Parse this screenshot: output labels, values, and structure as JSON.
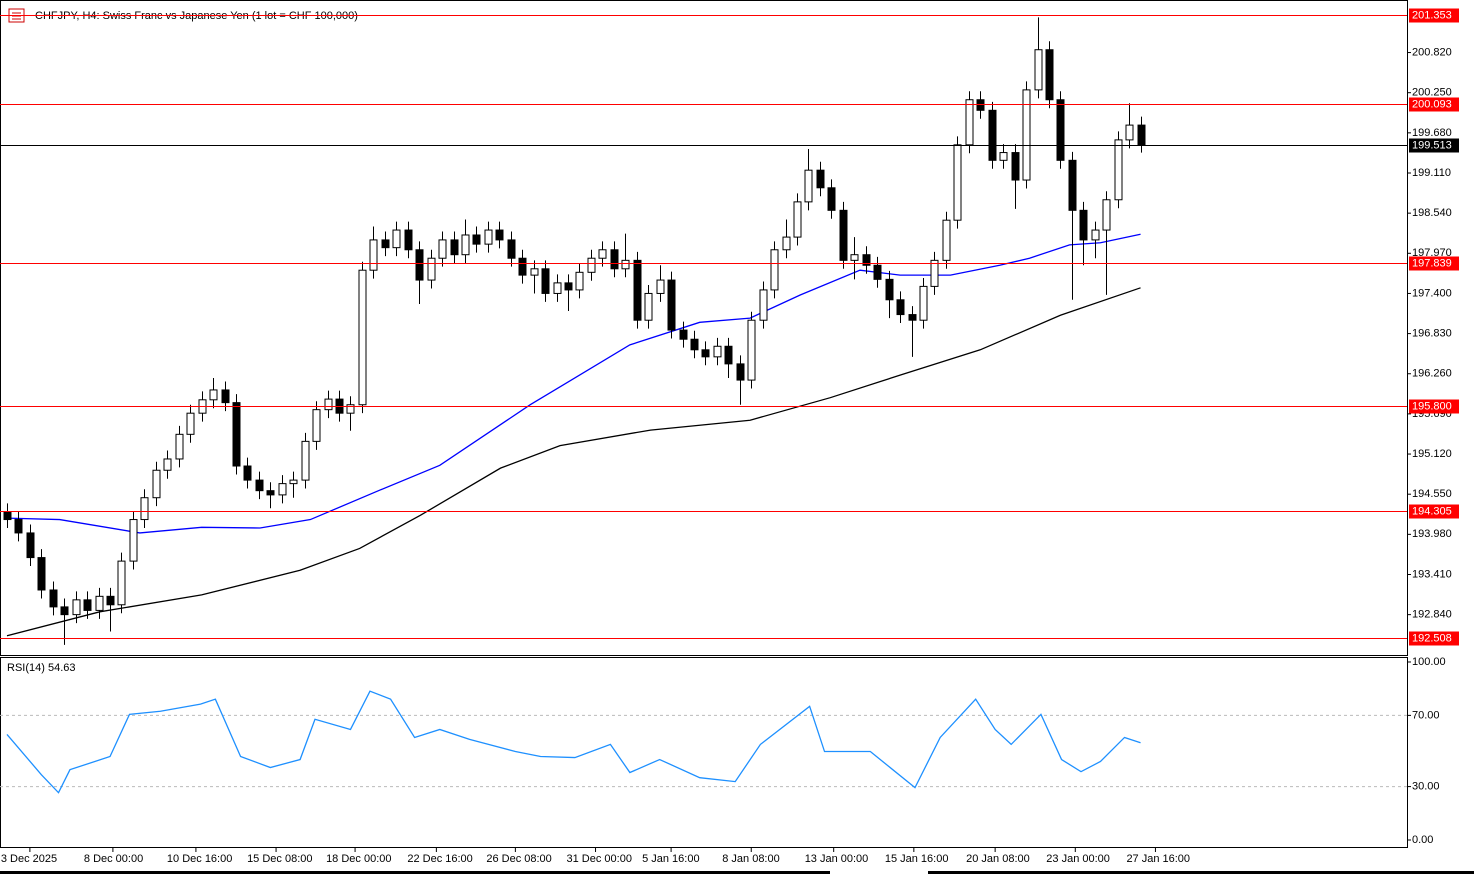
{
  "chart_data": [
    {
      "type": "candlestick",
      "title": "CHFJPY, H4:  Swiss Franc vs Japanese Yen (1 lot = CHF 100,000)",
      "xlim": [
        -0.61,
        122.27
      ],
      "ylim": [
        192.267,
        201.566
      ],
      "yticks": [
        {
          "value": 200.82,
          "label": "200.820"
        },
        {
          "value": 200.25,
          "label": "200.250"
        },
        {
          "value": 199.68,
          "label": "199.680"
        },
        {
          "value": 199.11,
          "label": "199.110"
        },
        {
          "value": 198.54,
          "label": "198.540"
        },
        {
          "value": 197.97,
          "label": "197.970"
        },
        {
          "value": 197.4,
          "label": "197.400"
        },
        {
          "value": 196.83,
          "label": "196.830"
        },
        {
          "value": 196.26,
          "label": "196.260"
        },
        {
          "value": 195.69,
          "label": "195.690"
        },
        {
          "value": 195.12,
          "label": "195.120"
        },
        {
          "value": 194.55,
          "label": "194.550"
        },
        {
          "value": 193.98,
          "label": "193.980"
        },
        {
          "value": 193.41,
          "label": "193.410"
        },
        {
          "value": 192.84,
          "label": "192.840"
        }
      ],
      "levels": [
        {
          "value": 201.353,
          "color": "#ff0000"
        },
        {
          "value": 200.093,
          "color": "#ff0000"
        },
        {
          "value": 199.513,
          "color": "#000000"
        },
        {
          "value": 197.839,
          "color": "#ff0000"
        },
        {
          "value": 195.8,
          "label": "195.800",
          "color": "#ff0000"
        },
        {
          "value": 194.305,
          "color": "#ff0000"
        },
        {
          "value": 192.508,
          "color": "#ff0000"
        }
      ],
      "ohlc": [
        [
          194.3,
          194.42,
          194.07,
          194.19
        ],
        [
          194.19,
          194.31,
          193.88,
          194.0
        ],
        [
          194.0,
          194.12,
          193.53,
          193.65
        ],
        [
          193.65,
          193.77,
          193.07,
          193.19
        ],
        [
          193.19,
          193.31,
          192.83,
          192.95
        ],
        [
          192.95,
          193.07,
          192.41,
          192.84
        ],
        [
          192.84,
          193.17,
          192.72,
          193.05
        ],
        [
          193.05,
          193.17,
          192.78,
          192.9
        ],
        [
          192.9,
          193.22,
          192.78,
          193.1
        ],
        [
          193.1,
          193.22,
          192.6,
          192.98
        ],
        [
          192.98,
          193.72,
          192.86,
          193.6
        ],
        [
          193.6,
          194.31,
          193.48,
          194.19
        ],
        [
          194.19,
          194.62,
          194.07,
          194.5
        ],
        [
          194.5,
          195.01,
          194.38,
          194.89
        ],
        [
          194.89,
          195.17,
          194.77,
          195.05
        ],
        [
          195.05,
          195.52,
          194.93,
          195.4
        ],
        [
          195.4,
          195.82,
          195.28,
          195.7
        ],
        [
          195.7,
          196.01,
          195.58,
          195.89
        ],
        [
          195.89,
          196.2,
          195.77,
          196.03
        ],
        [
          196.03,
          196.15,
          195.73,
          195.85
        ],
        [
          195.85,
          195.97,
          194.83,
          194.95
        ],
        [
          194.95,
          195.07,
          194.63,
          194.75
        ],
        [
          194.75,
          194.87,
          194.48,
          194.6
        ],
        [
          194.6,
          194.72,
          194.35,
          194.54
        ],
        [
          194.54,
          194.82,
          194.42,
          194.7
        ],
        [
          194.7,
          194.87,
          194.5,
          194.75
        ],
        [
          194.75,
          195.42,
          194.63,
          195.3
        ],
        [
          195.3,
          195.87,
          195.18,
          195.75
        ],
        [
          195.75,
          196.02,
          195.63,
          195.9
        ],
        [
          195.9,
          196.02,
          195.58,
          195.7
        ],
        [
          195.7,
          195.94,
          195.45,
          195.82
        ],
        [
          195.82,
          197.85,
          195.7,
          197.73
        ],
        [
          197.73,
          198.35,
          197.61,
          198.16
        ],
        [
          198.16,
          198.28,
          197.93,
          198.05
        ],
        [
          198.05,
          198.42,
          197.93,
          198.3
        ],
        [
          198.3,
          198.42,
          197.9,
          198.02
        ],
        [
          198.02,
          198.14,
          197.25,
          197.59
        ],
        [
          197.59,
          198.02,
          197.47,
          197.9
        ],
        [
          197.9,
          198.28,
          197.78,
          198.16
        ],
        [
          198.16,
          198.28,
          197.83,
          197.95
        ],
        [
          197.95,
          198.45,
          197.83,
          198.23
        ],
        [
          198.23,
          198.35,
          197.98,
          198.1
        ],
        [
          198.1,
          198.42,
          197.98,
          198.3
        ],
        [
          198.3,
          198.42,
          198.04,
          198.16
        ],
        [
          198.16,
          198.28,
          197.78,
          197.9
        ],
        [
          197.9,
          198.02,
          197.54,
          197.66
        ],
        [
          197.66,
          197.87,
          197.4,
          197.75
        ],
        [
          197.75,
          197.87,
          197.28,
          197.4
        ],
        [
          197.4,
          197.67,
          197.28,
          197.55
        ],
        [
          197.55,
          197.67,
          197.15,
          197.45
        ],
        [
          197.45,
          197.82,
          197.33,
          197.7
        ],
        [
          197.7,
          198.02,
          197.58,
          197.9
        ],
        [
          197.9,
          198.14,
          197.78,
          198.02
        ],
        [
          198.02,
          198.14,
          197.63,
          197.75
        ],
        [
          197.75,
          198.25,
          197.63,
          197.87
        ],
        [
          197.87,
          197.99,
          196.9,
          197.02
        ],
        [
          197.02,
          197.52,
          196.9,
          197.4
        ],
        [
          197.4,
          197.8,
          197.28,
          197.59
        ],
        [
          197.59,
          197.71,
          196.76,
          196.88
        ],
        [
          196.88,
          197.0,
          196.63,
          196.75
        ],
        [
          196.75,
          196.87,
          196.48,
          196.6
        ],
        [
          196.6,
          196.72,
          196.38,
          196.5
        ],
        [
          196.5,
          196.77,
          196.38,
          196.65
        ],
        [
          196.65,
          196.77,
          196.2,
          196.4
        ],
        [
          196.4,
          196.52,
          195.82,
          196.17
        ],
        [
          196.17,
          197.14,
          196.05,
          197.02
        ],
        [
          197.02,
          197.57,
          196.9,
          197.45
        ],
        [
          197.45,
          198.14,
          197.33,
          198.02
        ],
        [
          198.02,
          198.45,
          197.9,
          198.2
        ],
        [
          198.2,
          198.82,
          198.08,
          198.7
        ],
        [
          198.7,
          199.45,
          198.58,
          199.15
        ],
        [
          199.15,
          199.27,
          198.78,
          198.9
        ],
        [
          198.9,
          199.02,
          198.46,
          198.58
        ],
        [
          198.58,
          198.7,
          197.75,
          197.87
        ],
        [
          197.87,
          198.2,
          197.6,
          197.95
        ],
        [
          197.95,
          198.07,
          197.68,
          197.8
        ],
        [
          197.8,
          197.92,
          197.48,
          197.6
        ],
        [
          197.6,
          197.72,
          197.05,
          197.31
        ],
        [
          197.31,
          197.43,
          196.98,
          197.1
        ],
        [
          197.1,
          197.22,
          196.5,
          197.02
        ],
        [
          197.02,
          197.62,
          196.9,
          197.5
        ],
        [
          197.5,
          197.99,
          197.38,
          197.87
        ],
        [
          197.87,
          198.56,
          197.75,
          198.44
        ],
        [
          198.44,
          199.63,
          198.32,
          199.51
        ],
        [
          199.51,
          200.27,
          199.39,
          200.15
        ],
        [
          200.15,
          200.27,
          199.88,
          200.0
        ],
        [
          200.0,
          200.12,
          199.17,
          199.29
        ],
        [
          199.29,
          199.52,
          199.17,
          199.4
        ],
        [
          199.4,
          199.52,
          198.6,
          199.01
        ],
        [
          199.01,
          200.41,
          198.89,
          200.29
        ],
        [
          200.29,
          201.32,
          200.17,
          200.86
        ],
        [
          200.86,
          200.98,
          200.03,
          200.15
        ],
        [
          200.15,
          200.27,
          199.17,
          199.29
        ],
        [
          199.29,
          199.41,
          197.31,
          198.58
        ],
        [
          198.58,
          198.7,
          197.8,
          198.16
        ],
        [
          198.16,
          198.42,
          197.9,
          198.3
        ],
        [
          198.3,
          198.85,
          197.38,
          198.73
        ],
        [
          198.73,
          199.7,
          198.61,
          199.58
        ],
        [
          199.58,
          200.1,
          199.46,
          199.79
        ],
        [
          199.79,
          199.91,
          199.4,
          199.513
        ]
      ],
      "lines": [
        {
          "color": "#0000ff",
          "x": [
            0,
            4.6,
            11.6,
            17,
            22.1,
            26.5,
            32.6,
            37.8,
            45.7,
            54.4,
            60.5,
            64.9,
            69.3,
            74.5,
            78,
            82.4,
            86.7,
            89.3,
            92.8,
            95.5,
            99
          ],
          "values": [
            194.21,
            194.19,
            194.0,
            194.08,
            194.07,
            194.19,
            194.61,
            194.96,
            195.82,
            196.67,
            196.99,
            197.05,
            197.38,
            197.73,
            197.66,
            197.66,
            197.8,
            197.9,
            198.09,
            198.12,
            198.24
          ]
        },
        {
          "color": "#000000",
          "x": [
            0,
            8.1,
            17,
            25.6,
            30.8,
            36.1,
            43.1,
            48.3,
            56.2,
            64.9,
            71.9,
            78,
            85,
            92,
            99
          ],
          "values": [
            192.54,
            192.88,
            193.12,
            193.47,
            193.78,
            194.25,
            194.92,
            195.24,
            195.46,
            195.6,
            195.92,
            196.24,
            196.6,
            197.09,
            197.48
          ]
        }
      ]
    },
    {
      "type": "line",
      "title": "RSI(14) 54.63",
      "color": "#1e90ff",
      "xlim": [
        -0.61,
        122.27
      ],
      "ylim": [
        -4.5,
        102.8
      ],
      "yticks": [
        {
          "value": 100,
          "label": "100.00"
        },
        {
          "value": 70,
          "label": "70.00"
        },
        {
          "value": 30,
          "label": "30.00"
        },
        {
          "value": 0,
          "label": "0.00"
        }
      ],
      "dashed_lines": [
        70,
        30
      ],
      "xticks": [
        {
          "value": 2,
          "label": "3 Dec 2025"
        },
        {
          "value": 9.25,
          "label": "8 Dec 00:00"
        },
        {
          "value": 16.5,
          "label": "10 Dec 16:00"
        },
        {
          "value": 23.5,
          "label": "15 Dec 08:00"
        },
        {
          "value": 30.4,
          "label": "18 Dec 00:00"
        },
        {
          "value": 37.5,
          "label": "22 Dec 16:00"
        },
        {
          "value": 44.4,
          "label": "26 Dec 08:00"
        },
        {
          "value": 51.4,
          "label": "31 Dec 00:00"
        },
        {
          "value": 58,
          "label": "5 Jan 16:00"
        },
        {
          "value": 65,
          "label": "8 Jan 08:00"
        },
        {
          "value": 72.2,
          "label": "13 Jan 00:00"
        },
        {
          "value": 79.2,
          "label": "15 Jan 16:00"
        },
        {
          "value": 86.3,
          "label": "20 Jan 08:00"
        },
        {
          "value": 93.3,
          "label": "23 Jan 00:00"
        },
        {
          "value": 100.3,
          "label": "27 Jan 16:00"
        }
      ],
      "x": [
        0,
        3,
        4.5,
        5.5,
        9,
        10.7,
        13.4,
        16.9,
        18.2,
        20.4,
        23,
        25.6,
        26.9,
        30,
        31.7,
        33.5,
        35.6,
        37.8,
        40.4,
        44.4,
        46.6,
        49.6,
        52.7,
        54.4,
        57,
        60.5,
        63.6,
        65.8,
        70.1,
        71.4,
        75.4,
        79.3,
        81.5,
        84.6,
        86.3,
        87.7,
        90.3,
        92.1,
        93.8,
        95.5,
        97.6,
        99
      ],
      "values": [
        59.3,
        36.7,
        26.6,
        39.5,
        46.9,
        70.6,
        72.3,
        76.3,
        79.1,
        46.9,
        40.7,
        45.2,
        67.8,
        62.1,
        83.6,
        79.1,
        57.6,
        62.1,
        56.5,
        49.7,
        46.9,
        46.3,
        53.7,
        37.9,
        45.2,
        35,
        32.8,
        53.7,
        75.1,
        49.7,
        49.7,
        29.4,
        57.6,
        79.1,
        62.1,
        53.7,
        70.6,
        45.2,
        38.4,
        44.1,
        57.6,
        54.63
      ]
    }
  ]
}
